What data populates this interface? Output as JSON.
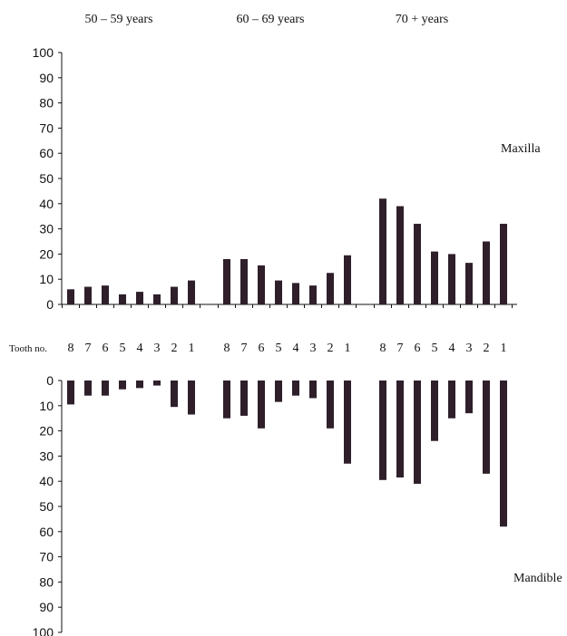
{
  "chart_data": {
    "type": "bar",
    "group_labels": [
      "50 – 59 years",
      "60 – 69 years",
      "70 + years"
    ],
    "tooth_axis_label": "Tooth no.",
    "tooth_numbers": [
      "8",
      "7",
      "6",
      "5",
      "4",
      "3",
      "2",
      "1"
    ],
    "y_range": [
      0,
      100
    ],
    "y_ticks": [
      0,
      10,
      20,
      30,
      40,
      50,
      60,
      70,
      80,
      90,
      100
    ],
    "bar_color": "#2e1f2a",
    "panels": [
      {
        "label": "Maxilla",
        "direction": "up",
        "groups": [
          {
            "group": "50 – 59 years",
            "values": [
              6,
              7,
              7.5,
              4,
              5,
              4,
              7,
              9.5
            ]
          },
          {
            "group": "60 – 69 years",
            "values": [
              18,
              18,
              15.5,
              9.5,
              8.5,
              7.5,
              12.5,
              19.5
            ]
          },
          {
            "group": "70 + years",
            "values": [
              42,
              39,
              32,
              21,
              20,
              16.5,
              25,
              32
            ]
          }
        ]
      },
      {
        "label": "Mandible",
        "direction": "down",
        "groups": [
          {
            "group": "50 – 59 years",
            "values": [
              9.5,
              6,
              6,
              3.5,
              3,
              2,
              10.5,
              13.5
            ]
          },
          {
            "group": "60 – 69 years",
            "values": [
              15,
              14,
              19,
              8.5,
              6,
              7,
              19,
              33
            ]
          },
          {
            "group": "70 + years",
            "values": [
              39.5,
              38.5,
              41,
              24,
              15,
              13,
              37,
              58
            ]
          }
        ]
      }
    ]
  }
}
